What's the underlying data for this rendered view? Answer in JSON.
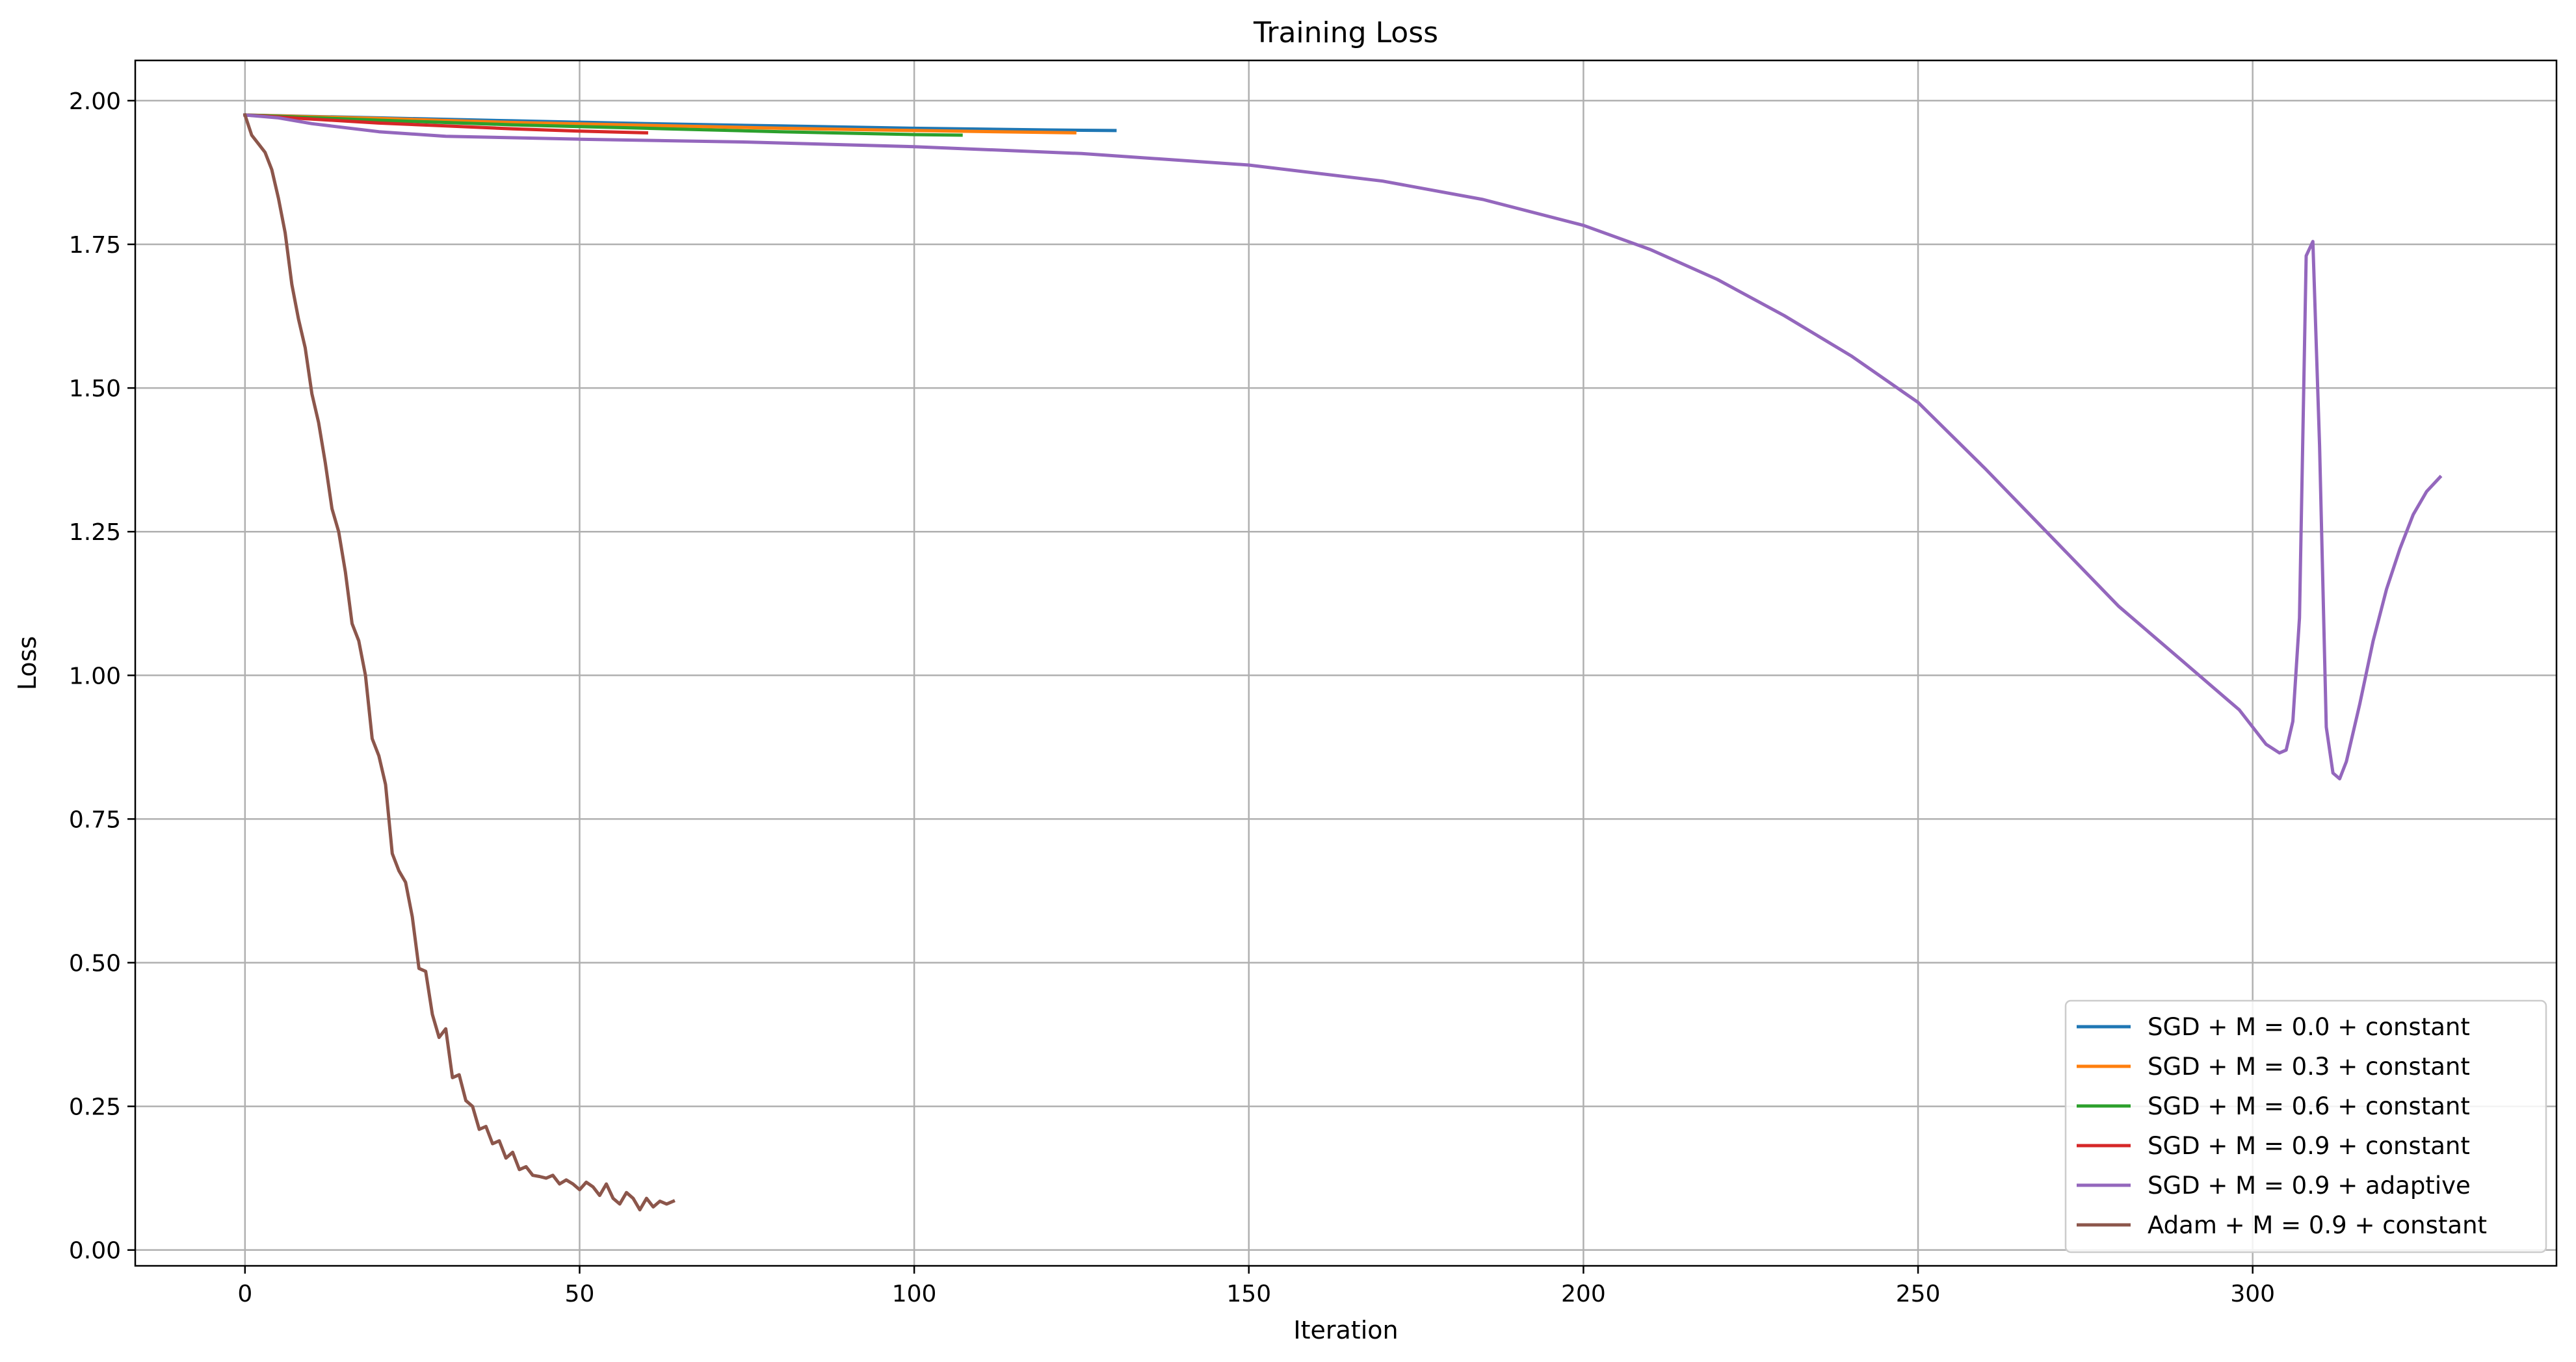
{
  "chart_data": {
    "type": "line",
    "title": "Training Loss",
    "xlabel": "Iteration",
    "ylabel": "Loss",
    "xlim": [
      -16.4,
      345.4
    ],
    "ylim": [
      -0.0275,
      2.07
    ],
    "xticks": [
      0,
      50,
      100,
      150,
      200,
      250,
      300
    ],
    "yticks": [
      0.0,
      0.25,
      0.5,
      0.75,
      1.0,
      1.25,
      1.5,
      1.75,
      2.0
    ],
    "ytick_labels": [
      "0.00",
      "0.25",
      "0.50",
      "0.75",
      "1.00",
      "1.25",
      "1.50",
      "1.75",
      "2.00"
    ],
    "xtick_labels": [
      "0",
      "50",
      "100",
      "150",
      "200",
      "250",
      "300"
    ],
    "grid": true,
    "legend_position": "lower-right",
    "series": [
      {
        "name": "SGD + M = 0.0 + constant",
        "color": "#1f77b4",
        "x": [
          0,
          20,
          40,
          60,
          80,
          100,
          120,
          130
        ],
        "y": [
          1.975,
          1.97,
          1.965,
          1.96,
          1.956,
          1.952,
          1.949,
          1.948
        ]
      },
      {
        "name": "SGD + M = 0.3 + constant",
        "color": "#ff7f0e",
        "x": [
          0,
          20,
          40,
          60,
          80,
          100,
          124
        ],
        "y": [
          1.975,
          1.969,
          1.962,
          1.957,
          1.952,
          1.948,
          1.944
        ]
      },
      {
        "name": "SGD + M = 0.6 + constant",
        "color": "#2ca02c",
        "x": [
          0,
          20,
          40,
          60,
          80,
          100,
          107
        ],
        "y": [
          1.975,
          1.966,
          1.958,
          1.952,
          1.946,
          1.941,
          1.94
        ]
      },
      {
        "name": "SGD + M = 0.9 + constant",
        "color": "#d62728",
        "x": [
          0,
          10,
          20,
          30,
          40,
          50,
          60
        ],
        "y": [
          1.975,
          1.968,
          1.961,
          1.956,
          1.951,
          1.947,
          1.944
        ]
      },
      {
        "name": "SGD + M = 0.9 + adaptive",
        "color": "#9467bd",
        "x": [
          0,
          5,
          10,
          20,
          30,
          50,
          75,
          100,
          125,
          150,
          170,
          185,
          200,
          210,
          220,
          230,
          240,
          250,
          260,
          270,
          280,
          290,
          298,
          302,
          304,
          305,
          306,
          307,
          308,
          309,
          310,
          311,
          312,
          313,
          314,
          316,
          318,
          320,
          322,
          324,
          326,
          328
        ],
        "y": [
          1.975,
          1.97,
          1.96,
          1.946,
          1.938,
          1.933,
          1.928,
          1.92,
          1.908,
          1.888,
          1.86,
          1.828,
          1.783,
          1.741,
          1.689,
          1.626,
          1.556,
          1.475,
          1.36,
          1.24,
          1.12,
          1.02,
          0.94,
          0.88,
          0.865,
          0.87,
          0.92,
          1.1,
          1.73,
          1.755,
          1.4,
          0.91,
          0.83,
          0.82,
          0.85,
          0.95,
          1.06,
          1.15,
          1.22,
          1.28,
          1.32,
          1.345
        ]
      },
      {
        "name": "Adam + M = 0.9 + constant",
        "color": "#8c564b",
        "x": [
          0,
          1,
          2,
          3,
          4,
          5,
          6,
          7,
          8,
          9,
          10,
          11,
          12,
          13,
          14,
          15,
          16,
          17,
          18,
          19,
          20,
          21,
          22,
          23,
          24,
          25,
          26,
          27,
          28,
          29,
          30,
          31,
          32,
          33,
          34,
          35,
          36,
          37,
          38,
          39,
          40,
          41,
          42,
          43,
          44,
          45,
          46,
          47,
          48,
          49,
          50,
          51,
          52,
          53,
          54,
          55,
          56,
          57,
          58,
          59,
          60,
          61,
          62,
          63,
          64
        ],
        "y": [
          1.975,
          1.94,
          1.925,
          1.91,
          1.88,
          1.83,
          1.77,
          1.68,
          1.62,
          1.57,
          1.49,
          1.44,
          1.37,
          1.29,
          1.25,
          1.18,
          1.09,
          1.06,
          1.0,
          0.89,
          0.86,
          0.81,
          0.69,
          0.66,
          0.64,
          0.58,
          0.49,
          0.485,
          0.41,
          0.37,
          0.385,
          0.3,
          0.305,
          0.26,
          0.25,
          0.21,
          0.215,
          0.185,
          0.19,
          0.16,
          0.17,
          0.14,
          0.145,
          0.13,
          0.128,
          0.125,
          0.13,
          0.115,
          0.122,
          0.115,
          0.105,
          0.118,
          0.11,
          0.095,
          0.115,
          0.09,
          0.08,
          0.1,
          0.09,
          0.07,
          0.09,
          0.075,
          0.085,
          0.08,
          0.085
        ]
      }
    ]
  }
}
